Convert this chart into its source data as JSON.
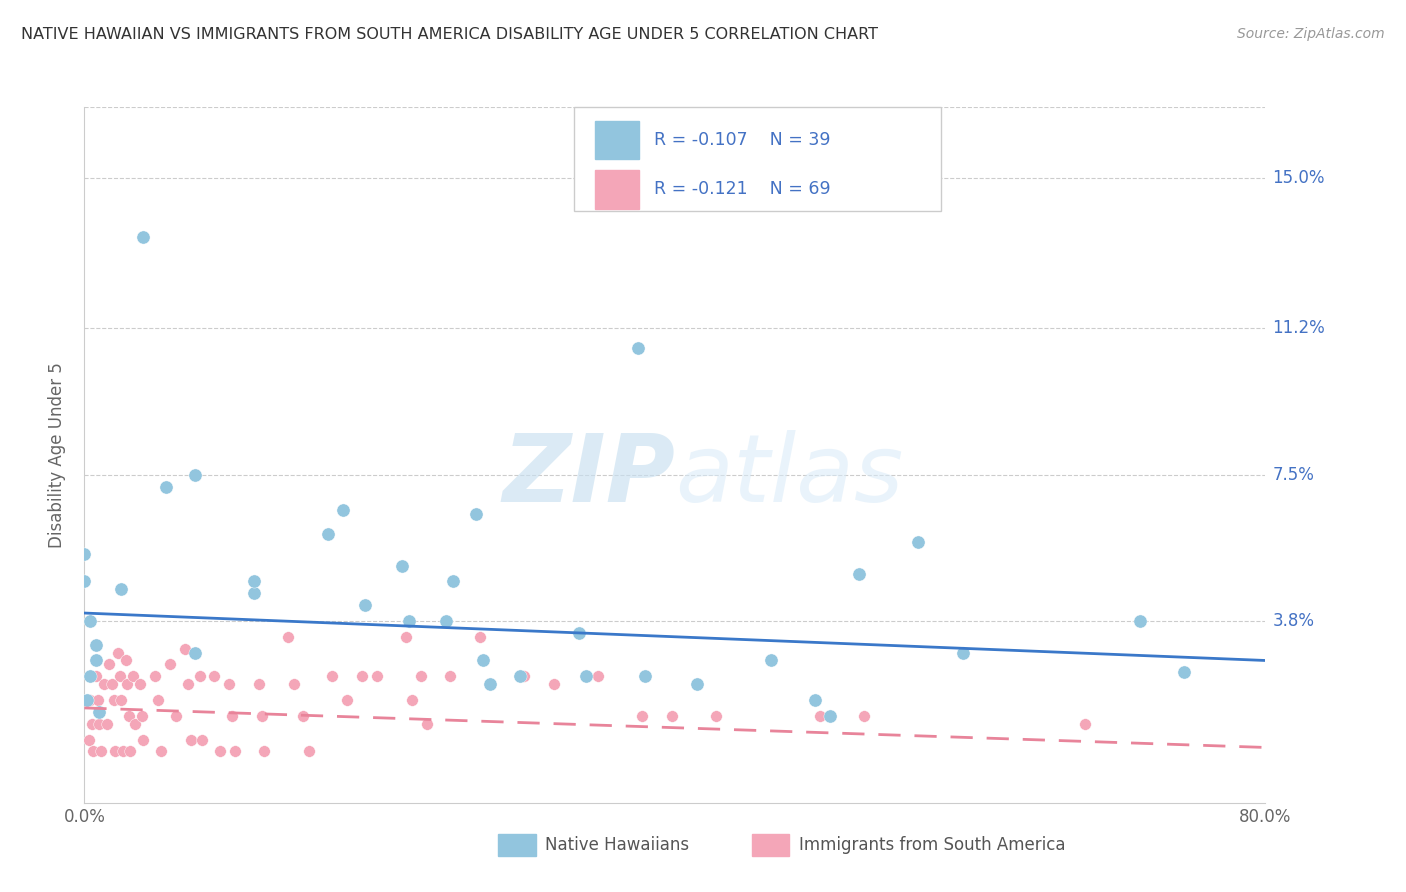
{
  "title": "NATIVE HAWAIIAN VS IMMIGRANTS FROM SOUTH AMERICA DISABILITY AGE UNDER 5 CORRELATION CHART",
  "source": "Source: ZipAtlas.com",
  "ylabel_label": "Disability Age Under 5",
  "ytick_labels": [
    "15.0%",
    "11.2%",
    "7.5%",
    "3.8%"
  ],
  "ytick_values": [
    0.15,
    0.112,
    0.075,
    0.038
  ],
  "xlim": [
    0.0,
    0.8
  ],
  "ylim": [
    -0.008,
    0.168
  ],
  "legend_r1": "-0.107",
  "legend_n1": "39",
  "legend_r2": "-0.121",
  "legend_n2": "69",
  "color_blue": "#92c5de",
  "color_pink": "#f4a6b8",
  "color_line_blue": "#3a78c9",
  "color_line_pink": "#e8849a",
  "color_text_blue": "#4472c4",
  "color_axis": "#aaaaaa",
  "color_grid": "#cccccc",
  "watermark_zip": "ZIP",
  "watermark_atlas": "atlas",
  "blue_scatter_x": [
    0.04,
    0.0,
    0.0,
    0.004,
    0.008,
    0.008,
    0.004,
    0.002,
    0.01,
    0.025,
    0.055,
    0.075,
    0.115,
    0.075,
    0.115,
    0.165,
    0.175,
    0.19,
    0.215,
    0.22,
    0.25,
    0.265,
    0.245,
    0.27,
    0.295,
    0.275,
    0.335,
    0.34,
    0.375,
    0.38,
    0.415,
    0.465,
    0.495,
    0.505,
    0.525,
    0.565,
    0.595,
    0.715,
    0.745
  ],
  "blue_scatter_y": [
    0.135,
    0.055,
    0.048,
    0.038,
    0.032,
    0.028,
    0.024,
    0.018,
    0.015,
    0.046,
    0.072,
    0.075,
    0.045,
    0.03,
    0.048,
    0.06,
    0.066,
    0.042,
    0.052,
    0.038,
    0.048,
    0.065,
    0.038,
    0.028,
    0.024,
    0.022,
    0.035,
    0.024,
    0.107,
    0.024,
    0.022,
    0.028,
    0.018,
    0.014,
    0.05,
    0.058,
    0.03,
    0.038,
    0.025
  ],
  "pink_scatter_x": [
    0.002,
    0.003,
    0.004,
    0.005,
    0.006,
    0.008,
    0.009,
    0.01,
    0.011,
    0.013,
    0.015,
    0.017,
    0.019,
    0.02,
    0.021,
    0.023,
    0.024,
    0.025,
    0.026,
    0.028,
    0.029,
    0.03,
    0.031,
    0.033,
    0.034,
    0.038,
    0.039,
    0.04,
    0.048,
    0.05,
    0.052,
    0.058,
    0.062,
    0.068,
    0.07,
    0.072,
    0.078,
    0.08,
    0.088,
    0.092,
    0.098,
    0.1,
    0.102,
    0.118,
    0.12,
    0.122,
    0.138,
    0.142,
    0.148,
    0.152,
    0.168,
    0.178,
    0.188,
    0.198,
    0.218,
    0.222,
    0.228,
    0.232,
    0.248,
    0.268,
    0.298,
    0.318,
    0.348,
    0.378,
    0.398,
    0.428,
    0.498,
    0.528,
    0.678
  ],
  "pink_scatter_y": [
    0.018,
    0.008,
    0.018,
    0.012,
    0.005,
    0.024,
    0.018,
    0.012,
    0.005,
    0.022,
    0.012,
    0.027,
    0.022,
    0.018,
    0.005,
    0.03,
    0.024,
    0.018,
    0.005,
    0.028,
    0.022,
    0.014,
    0.005,
    0.024,
    0.012,
    0.022,
    0.014,
    0.008,
    0.024,
    0.018,
    0.005,
    0.027,
    0.014,
    0.031,
    0.022,
    0.008,
    0.024,
    0.008,
    0.024,
    0.005,
    0.022,
    0.014,
    0.005,
    0.022,
    0.014,
    0.005,
    0.034,
    0.022,
    0.014,
    0.005,
    0.024,
    0.018,
    0.024,
    0.024,
    0.034,
    0.018,
    0.024,
    0.012,
    0.024,
    0.034,
    0.024,
    0.022,
    0.024,
    0.014,
    0.014,
    0.014,
    0.014,
    0.014,
    0.012
  ],
  "blue_trend_x": [
    0.0,
    0.8
  ],
  "blue_trend_y": [
    0.04,
    0.028
  ],
  "pink_trend_x": [
    0.0,
    0.8
  ],
  "pink_trend_y": [
    0.016,
    0.006
  ]
}
